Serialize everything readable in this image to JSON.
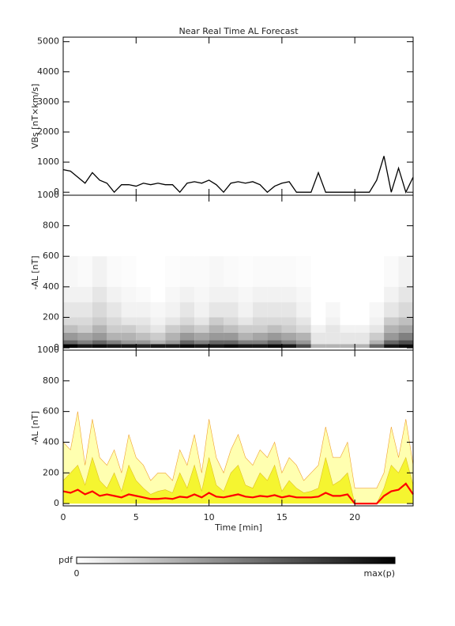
{
  "chart_data": [
    {
      "type": "line",
      "title": "Near Real Time AL Forecast",
      "ylabel": "VBs [nT×km/s]",
      "x": [
        0,
        0.5,
        1,
        1.5,
        2,
        2.5,
        3,
        3.5,
        4,
        4.5,
        5,
        5.5,
        6,
        6.5,
        7,
        7.5,
        8,
        8.5,
        9,
        9.5,
        10,
        10.5,
        11,
        11.5,
        12,
        12.5,
        13,
        13.5,
        14,
        14.5,
        15,
        15.5,
        16,
        16.5,
        17,
        17.5,
        18,
        18.5,
        19,
        19.5,
        20,
        20.5,
        21,
        21.5,
        22,
        22.5,
        23,
        23.5,
        24
      ],
      "series": [
        {
          "color": "#000000",
          "values": [
            750,
            700,
            500,
            300,
            650,
            400,
            300,
            0,
            250,
            250,
            200,
            300,
            250,
            300,
            250,
            250,
            0,
            300,
            350,
            300,
            400,
            250,
            0,
            300,
            350,
            300,
            350,
            250,
            0,
            200,
            300,
            350,
            0,
            0,
            0,
            650,
            0,
            0,
            0,
            0,
            0,
            0,
            0,
            400,
            1200,
            0,
            800,
            0,
            500
          ]
        }
      ],
      "xlim": [
        0,
        24
      ],
      "ylim": [
        -100,
        5150
      ],
      "yticks": [
        0,
        1000,
        2000,
        3000,
        4000,
        5000
      ]
    },
    {
      "type": "heatmap",
      "ylabel": "-AL [nT]",
      "xbins": [
        0,
        1,
        2,
        3,
        4,
        5,
        6,
        7,
        8,
        9,
        10,
        11,
        12,
        13,
        14,
        15,
        16,
        17,
        18,
        19,
        20,
        21,
        22,
        23,
        24
      ],
      "ybins": [
        0,
        25,
        50,
        100,
        150,
        200,
        300,
        400,
        600
      ],
      "z": [
        [
          1,
          0.9,
          0.95,
          0.9,
          0.9,
          0.85,
          0.9,
          0.9,
          0.95,
          0.9,
          0.9,
          0.95,
          0.9,
          0.9,
          0.95,
          0.9,
          0.7,
          0.3,
          0.3,
          0.3,
          0.3,
          0.6,
          0.9,
          0.95
        ],
        [
          0.6,
          0.5,
          0.6,
          0.5,
          0.4,
          0.4,
          0.3,
          0.4,
          0.6,
          0.5,
          0.6,
          0.6,
          0.5,
          0.5,
          0.6,
          0.5,
          0.4,
          0.1,
          0.1,
          0.1,
          0.1,
          0.3,
          0.6,
          0.7
        ],
        [
          0.4,
          0.35,
          0.4,
          0.3,
          0.3,
          0.25,
          0.2,
          0.3,
          0.4,
          0.35,
          0.4,
          0.4,
          0.3,
          0.35,
          0.4,
          0.35,
          0.3,
          0.1,
          0.1,
          0.1,
          0.1,
          0.2,
          0.4,
          0.5
        ],
        [
          0.25,
          0.2,
          0.3,
          0.2,
          0.2,
          0.15,
          0.1,
          0.2,
          0.25,
          0.2,
          0.3,
          0.25,
          0.2,
          0.2,
          0.25,
          0.2,
          0.15,
          0.05,
          0.1,
          0.05,
          0.05,
          0.1,
          0.3,
          0.35
        ],
        [
          0.15,
          0.15,
          0.2,
          0.15,
          0.1,
          0.1,
          0.05,
          0.1,
          0.15,
          0.1,
          0.2,
          0.15,
          0.1,
          0.15,
          0.15,
          0.15,
          0.1,
          0,
          0.05,
          0,
          0,
          0.05,
          0.2,
          0.25
        ],
        [
          0.1,
          0.1,
          0.15,
          0.1,
          0.05,
          0.05,
          0.03,
          0.05,
          0.1,
          0.05,
          0.1,
          0.1,
          0.05,
          0.1,
          0.1,
          0.1,
          0.05,
          0,
          0.03,
          0,
          0,
          0.03,
          0.1,
          0.15
        ],
        [
          0.05,
          0.05,
          0.1,
          0.05,
          0.03,
          0.02,
          0,
          0.03,
          0.05,
          0.03,
          0.05,
          0.05,
          0.03,
          0.05,
          0.05,
          0.05,
          0.03,
          0,
          0,
          0,
          0,
          0,
          0.05,
          0.1
        ],
        [
          0.03,
          0.02,
          0.05,
          0.02,
          0.01,
          0,
          0,
          0.01,
          0.02,
          0.02,
          0.03,
          0.02,
          0.01,
          0.02,
          0.02,
          0.02,
          0.01,
          0,
          0,
          0,
          0,
          0,
          0.02,
          0.05
        ]
      ],
      "xlim": [
        0,
        24
      ],
      "ylim": [
        -15,
        1000
      ],
      "yticks": [
        0,
        200,
        400,
        600,
        800,
        1000
      ],
      "colorbar": {
        "label": "pdf",
        "min_label": "0",
        "max_label": "max(p)"
      }
    },
    {
      "type": "area",
      "ylabel": "-AL [nT]",
      "xlabel": "Time [min]",
      "x": [
        0,
        0.5,
        1,
        1.5,
        2,
        2.5,
        3,
        3.5,
        4,
        4.5,
        5,
        5.5,
        6,
        6.5,
        7,
        7.5,
        8,
        8.5,
        9,
        9.5,
        10,
        10.5,
        11,
        11.5,
        12,
        12.5,
        13,
        13.5,
        14,
        14.5,
        15,
        15.5,
        16,
        16.5,
        17,
        17.5,
        18,
        18.5,
        19,
        19.5,
        20,
        20.5,
        21,
        21.5,
        22,
        22.5,
        23,
        23.5,
        24
      ],
      "series": [
        {
          "color": "#f0a030",
          "fill": "#ffffb0",
          "values": [
            400,
            350,
            600,
            250,
            550,
            300,
            250,
            350,
            200,
            450,
            300,
            250,
            150,
            200,
            200,
            150,
            350,
            250,
            450,
            200,
            550,
            300,
            200,
            350,
            450,
            300,
            250,
            350,
            300,
            400,
            200,
            300,
            250,
            150,
            200,
            250,
            500,
            300,
            300,
            400,
            100,
            100,
            100,
            100,
            200,
            500,
            300,
            550,
            250
          ]
        },
        {
          "color": "#e0c020",
          "fill": "#f5f530",
          "values": [
            150,
            200,
            250,
            120,
            300,
            150,
            100,
            200,
            80,
            250,
            150,
            100,
            60,
            80,
            90,
            70,
            200,
            100,
            250,
            80,
            300,
            120,
            80,
            200,
            250,
            120,
            100,
            200,
            150,
            250,
            80,
            150,
            100,
            70,
            80,
            100,
            300,
            120,
            150,
            200,
            0,
            0,
            0,
            0,
            100,
            250,
            200,
            300,
            120
          ]
        },
        {
          "color": "#ff0000",
          "values": [
            80,
            70,
            90,
            60,
            80,
            50,
            60,
            50,
            40,
            60,
            50,
            40,
            30,
            30,
            35,
            30,
            45,
            40,
            60,
            40,
            70,
            45,
            40,
            50,
            60,
            45,
            40,
            50,
            45,
            55,
            40,
            50,
            40,
            40,
            40,
            45,
            70,
            50,
            50,
            60,
            0,
            0,
            0,
            0,
            50,
            80,
            90,
            130,
            60
          ]
        }
      ],
      "xlim": [
        0,
        24
      ],
      "ylim": [
        -15,
        1000
      ],
      "yticks": [
        0,
        200,
        400,
        600,
        800,
        1000
      ],
      "xticks": [
        0,
        5,
        10,
        15,
        20
      ]
    }
  ]
}
